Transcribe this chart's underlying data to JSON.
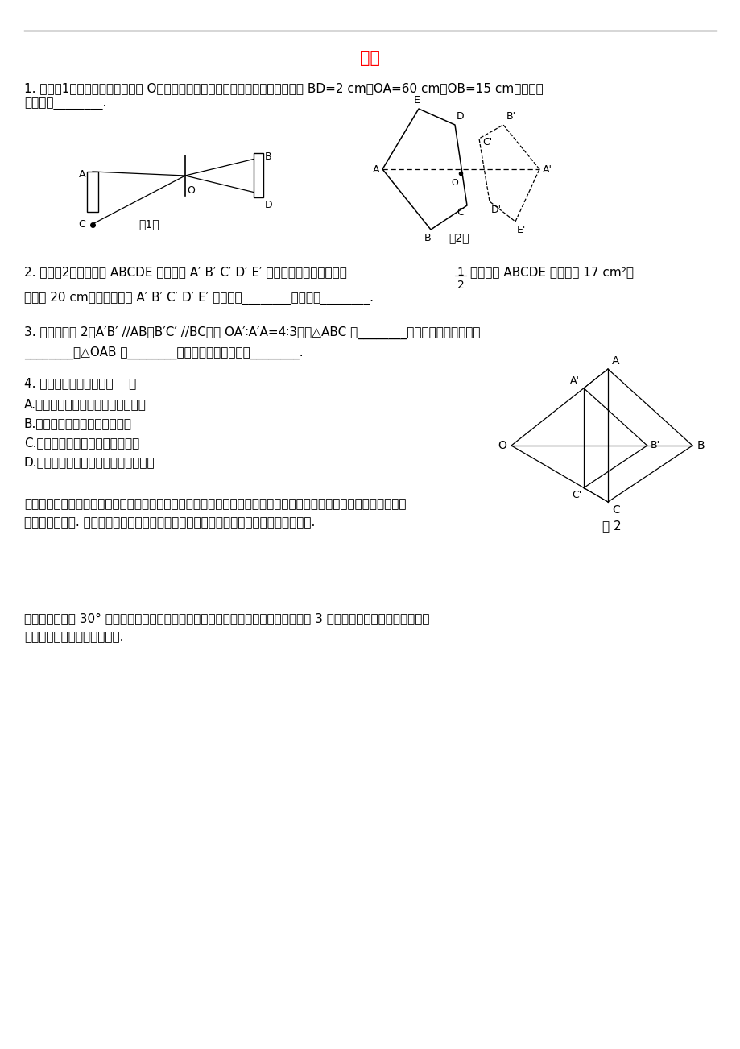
{
  "title": "位似",
  "title_color": "#FF0000",
  "background_color": "#FFFFFF",
  "text_color": "#000000",
  "q1_text_l1": "1. 如图（1）火焰的光线穿过小孔 O，在竖直的屏幕上形成倒立的实像，像的长度 BD=2 cm，OA=60 cm，OB=15 cm，则火焰",
  "q1_text_l2": "的长度为________.",
  "q2_line1": "2. 如图（2），五边形 ABCDE 与五边形 A′ B′ C′ D′ E′ 是位似图形，且位似比为",
  "q2_line2": "若五边形 ABCDE 的面积为 17 cm²，",
  "q2_line3": "周长为 20 cm，那么五边形 A′ B′ C′ D′ E′ 的面积为________，周长为________.",
  "q3_text_l1": "3. 已知，如图 2，A′B′ //AB，B′C′ //BC，且 OA′∶A′A=4∶3，则△ABC 与________是位似图形，位似比为",
  "q3_text_l2": "________；△OAB 与________是位似图形，位似比为________.",
  "q4_text": "4. 下列说法中正确的是（    ）",
  "q4a": "A.位似图形可以通过平移而相互得到",
  "q4b": "B.位似图形的对应边平行且相等",
  "q4c": "C.位似图形的位似中心不只有一个",
  "q4d": "D.位似中心到对应点的距离之比都相等",
  "q5_text_l1": "小明在一块玻璃上画上了一幅画，然后用手电筒照着这块玻璃，将画映到雪白的墙上，这时我们认为玻璃上的画和墙上",
  "q5_text_l2": "的画是位似图形. 请你再举出一些生活中的位似图形来？并说明一对对应线段的位置关系.",
  "q6_text_l1": "将有一个锐角为 30° 的直角三角形放大，使放大后的三角形的边是原三角形对应边的 3 倍，并分别确定放大前后对应斜",
  "q6_text_l2": "边的比值、对应直角边的比值.",
  "fig2_label": "图 2"
}
